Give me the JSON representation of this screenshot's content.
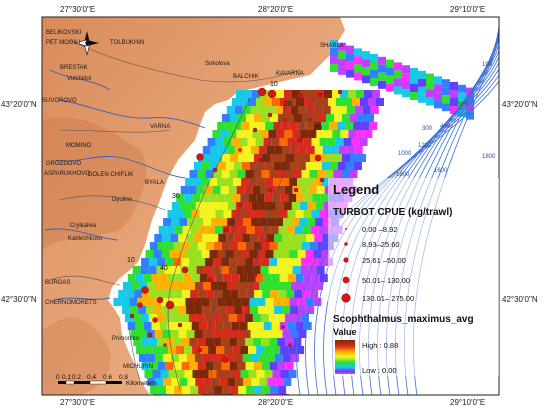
{
  "axes": {
    "top_lon": [
      "27°30'0\"E",
      "28°20'0\"E",
      "29°10'0\"E"
    ],
    "bottom_lon": [
      "27°30'0\"E",
      "28°20'0\"E",
      "29°10'0\"E"
    ],
    "left_lat": [
      "43°20'0\"N",
      "42°30'0\"N"
    ],
    "right_lat": [
      "43°20'0\"N",
      "42°30'0\"N"
    ]
  },
  "places": [
    {
      "name": "BELIKOVSKI"
    },
    {
      "name": "PET MOGILI"
    },
    {
      "name": "TOLBUKHIN"
    },
    {
      "name": "BRESTAK"
    },
    {
      "name": "SHABLA"
    },
    {
      "name": "Sokolova"
    },
    {
      "name": "BALCHIK"
    },
    {
      "name": "Vulchidol"
    },
    {
      "name": "KAVARNA"
    },
    {
      "name": "SUVOROVO"
    },
    {
      "name": "VARNA"
    },
    {
      "name": "MOMINO"
    },
    {
      "name": "GROZDOVO"
    },
    {
      "name": "ASPARUKHOVO"
    },
    {
      "name": "DOLEN CHIFLIK"
    },
    {
      "name": "Dyulino"
    },
    {
      "name": "BYALA"
    },
    {
      "name": "Cryikaliva"
    },
    {
      "name": "Kableshkovo"
    },
    {
      "name": "BURGAS"
    },
    {
      "name": "CHERNOMORETS"
    },
    {
      "name": "Primorsko"
    },
    {
      "name": "MICHURIN"
    }
  ],
  "contour_labels": [
    "10",
    "20",
    "30",
    "70",
    "40",
    "10"
  ],
  "depth_labels": [
    "100",
    "300",
    "400",
    "500",
    "1000",
    "1200",
    "1600",
    "1800",
    "1800"
  ],
  "legend": {
    "title": "Legend",
    "cpue_title": "TURBOT CPUE (kg/trawl)",
    "classes": [
      {
        "label": "0.00 –8.92"
      },
      {
        "label": "8.93–25.60"
      },
      {
        "label": "25.61 –50.00"
      },
      {
        "label": "50.01– 130.00"
      },
      {
        "label": "130.01– 275.00"
      }
    ],
    "raster_title": "Scophthalmus_maximus_avg",
    "value_title": "Value",
    "high": "High : 0.88",
    "low": "Low : 0.00"
  },
  "scale_bar": {
    "ticks": [
      "0",
      "0.1",
      "0.2",
      "0.4",
      "0.6",
      "0.8"
    ],
    "unit": "Kilometers"
  },
  "colors": {
    "land": "#e8a070",
    "sea": "#ffffff",
    "bathy": "#3b6fd8",
    "cpue": "#d01818"
  }
}
